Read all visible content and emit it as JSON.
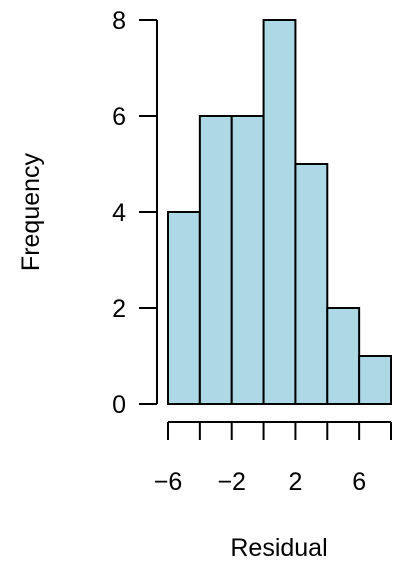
{
  "chart_data": {
    "type": "histogram",
    "xlabel": "Residual",
    "ylabel": "Frequency",
    "bins": [
      {
        "start": -6,
        "end": -4,
        "count": 4
      },
      {
        "start": -4,
        "end": -2,
        "count": 6
      },
      {
        "start": -2,
        "end": 0,
        "count": 6
      },
      {
        "start": 0,
        "end": 2,
        "count": 8
      },
      {
        "start": 2,
        "end": 4,
        "count": 5
      },
      {
        "start": 4,
        "end": 6,
        "count": 2
      },
      {
        "start": 6,
        "end": 8,
        "count": 1
      }
    ],
    "xlim": [
      -6,
      8
    ],
    "ylim": [
      0,
      8
    ],
    "x_ticks": [
      -6,
      -4,
      -2,
      0,
      2,
      4,
      6,
      8
    ],
    "x_tick_labels": [
      {
        "value": -6,
        "label": "−6"
      },
      {
        "value": -2,
        "label": "−2"
      },
      {
        "value": 2,
        "label": "2"
      },
      {
        "value": 6,
        "label": "6"
      }
    ],
    "y_ticks": [
      0,
      2,
      4,
      6,
      8
    ],
    "y_tick_labels": [
      "0",
      "2",
      "4",
      "6",
      "8"
    ],
    "bar_color": "#add8e6",
    "edge_color": "#000000",
    "grid": false
  }
}
